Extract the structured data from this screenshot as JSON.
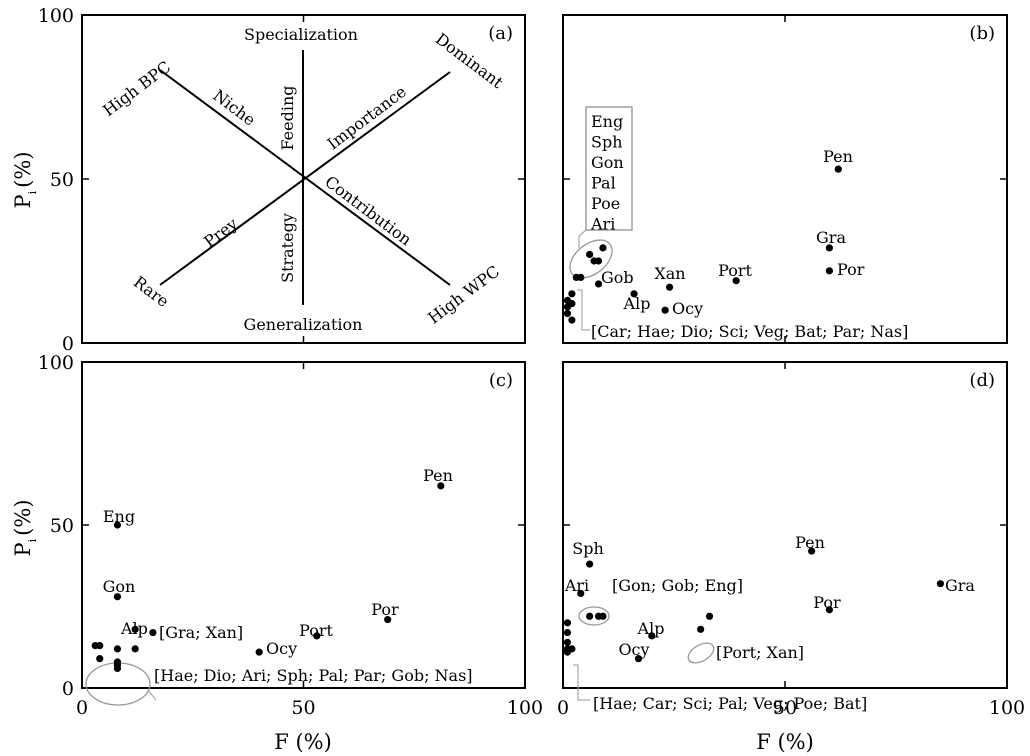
{
  "figure": {
    "y_axis_title": "P",
    "y_axis_subscript": "i",
    "y_axis_unit": "(%)",
    "x_axis_title": "F (%)"
  },
  "chart_data": [
    {
      "panel": "(a)",
      "type": "diagram",
      "xlim": [
        0,
        100
      ],
      "ylim": [
        0,
        100
      ],
      "x_ticks": [
        "0",
        "50",
        "100"
      ],
      "y_ticks": [
        "0",
        "50",
        "100"
      ],
      "terms": {
        "top": "Specialization",
        "bottom": "Generalization",
        "top_left": "High BPC",
        "top_right": "Dominant",
        "bottom_left": "Rare",
        "bottom_right": "High WPC",
        "axis_upper_left": "Niche",
        "axis_upper_right": "Importance",
        "axis_lower_left": "Prey",
        "axis_lower_right": "Contribution",
        "vertical_upper": "Feeding",
        "vertical_lower": "Strategy"
      }
    },
    {
      "panel": "(b)",
      "type": "scatter",
      "xlim": [
        0,
        100
      ],
      "ylim": [
        0,
        100
      ],
      "x_ticks": [
        "0",
        "50",
        "100"
      ],
      "y_ticks": [
        "0",
        "50",
        "100"
      ],
      "points": [
        {
          "label": "Pen",
          "x": 62,
          "y": 53
        },
        {
          "label": "Gra",
          "x": 60,
          "y": 29
        },
        {
          "label": "Por",
          "x": 60,
          "y": 22
        },
        {
          "label": "Port",
          "x": 39,
          "y": 19
        },
        {
          "label": "Xan",
          "x": 24,
          "y": 17
        },
        {
          "label": "Alp",
          "x": 16,
          "y": 15
        },
        {
          "label": "Ocy",
          "x": 23,
          "y": 10
        },
        {
          "label": "Gob",
          "x": 8,
          "y": 18
        },
        {
          "label": "",
          "x": 4,
          "y": 20
        },
        {
          "label": "",
          "x": 3,
          "y": 20
        },
        {
          "label": "",
          "x": 6,
          "y": 27
        },
        {
          "label": "",
          "x": 7,
          "y": 25
        },
        {
          "label": "",
          "x": 8,
          "y": 25
        },
        {
          "label": "",
          "x": 9,
          "y": 29
        },
        {
          "label": "",
          "x": 1,
          "y": 13
        },
        {
          "label": "",
          "x": 1,
          "y": 11
        },
        {
          "label": "",
          "x": 1,
          "y": 9
        },
        {
          "label": "",
          "x": 2,
          "y": 15
        },
        {
          "label": "",
          "x": 2,
          "y": 12
        },
        {
          "label": "",
          "x": 2,
          "y": 7
        }
      ],
      "group_labels": [
        {
          "lines": [
            "Eng",
            "Sph",
            "Gon",
            "Pal",
            "Poe",
            "Ari"
          ]
        },
        {
          "text": "[Car; Hae; Dio; Sci; Veg; Bat; Par; Nas]"
        }
      ]
    },
    {
      "panel": "(c)",
      "type": "scatter",
      "xlim": [
        0,
        100
      ],
      "ylim": [
        0,
        100
      ],
      "x_ticks": [
        "0",
        "50",
        "100"
      ],
      "y_ticks": [
        "0",
        "50",
        "100"
      ],
      "points": [
        {
          "label": "Pen",
          "x": 81,
          "y": 62
        },
        {
          "label": "Eng",
          "x": 8,
          "y": 50
        },
        {
          "label": "Gon",
          "x": 8,
          "y": 28
        },
        {
          "label": "Alp",
          "x": 12,
          "y": 18
        },
        {
          "label": "Por",
          "x": 69,
          "y": 21
        },
        {
          "label": "Port",
          "x": 53,
          "y": 16
        },
        {
          "label": "Ocy",
          "x": 40,
          "y": 11
        },
        {
          "label": "",
          "x": 16,
          "y": 17
        },
        {
          "label": "",
          "x": 3,
          "y": 13
        },
        {
          "label": "",
          "x": 4,
          "y": 13
        },
        {
          "label": "",
          "x": 4,
          "y": 9
        },
        {
          "label": "",
          "x": 8,
          "y": 12
        },
        {
          "label": "",
          "x": 8,
          "y": 8
        },
        {
          "label": "",
          "x": 8,
          "y": 6
        },
        {
          "label": "",
          "x": 8,
          "y": 7
        },
        {
          "label": "",
          "x": 12,
          "y": 12
        }
      ],
      "group_labels": [
        {
          "text": "[Gra; Xan]"
        },
        {
          "text": "[Hae; Dio; Ari; Sph; Pal; Par; Gob; Nas]"
        }
      ]
    },
    {
      "panel": "(d)",
      "type": "scatter",
      "xlim": [
        0,
        100
      ],
      "ylim": [
        0,
        100
      ],
      "x_ticks": [
        "0",
        "50",
        "100"
      ],
      "y_ticks": [
        "0",
        "50",
        "100"
      ],
      "points": [
        {
          "label": "Pen",
          "x": 56,
          "y": 42
        },
        {
          "label": "Gra",
          "x": 85,
          "y": 32
        },
        {
          "label": "Por",
          "x": 60,
          "y": 24
        },
        {
          "label": "Sph",
          "x": 6,
          "y": 38
        },
        {
          "label": "Ari",
          "x": 4,
          "y": 29
        },
        {
          "label": "Alp",
          "x": 20,
          "y": 16
        },
        {
          "label": "Ocy",
          "x": 17,
          "y": 9
        },
        {
          "label": "",
          "x": 6,
          "y": 22
        },
        {
          "label": "",
          "x": 8,
          "y": 22
        },
        {
          "label": "",
          "x": 9,
          "y": 22
        },
        {
          "label": "",
          "x": 31,
          "y": 18
        },
        {
          "label": "",
          "x": 33,
          "y": 22
        },
        {
          "label": "",
          "x": 1,
          "y": 20
        },
        {
          "label": "",
          "x": 1,
          "y": 17
        },
        {
          "label": "",
          "x": 1,
          "y": 14
        },
        {
          "label": "",
          "x": 1,
          "y": 12
        },
        {
          "label": "",
          "x": 1,
          "y": 11
        },
        {
          "label": "",
          "x": 2,
          "y": 12
        }
      ],
      "group_labels": [
        {
          "text": "[Gon; Gob; Eng]"
        },
        {
          "text": "[Port; Xan]"
        },
        {
          "text": "[Hae; Car; Sci; Pal; Veg; Poe; Bat]"
        }
      ]
    }
  ]
}
